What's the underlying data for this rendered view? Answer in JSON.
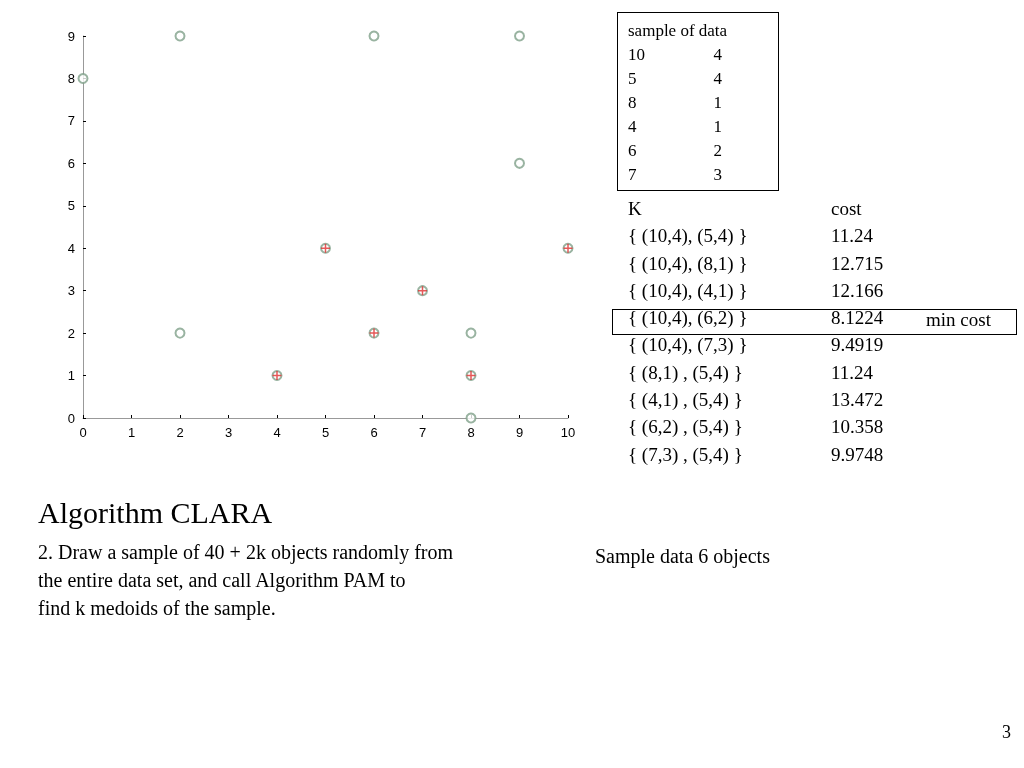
{
  "chart_data": {
    "type": "scatter",
    "title": "Algorithm CLARA",
    "subtitle": "2. Draw a sample of 40 + 2k objects randomly from\nthe entire data set, and call Algorithm PAM to\nfind k medoids of the sample.",
    "annotations": [
      "sample of data\n10\t4\n5\t4\n8\t1\n4\t1\n6\t2\n7\t3",
      "K\tcost\n{ (10,4), (5,4) }\t11.24\n{ (10,4), (8,1) }\t12.715\n{ (10,4), (4,1) }\t12.166\n{ (10,4), (6,2) }\t8.1224\n{ (10,4), (7,3) }\t9.4919\n{ (8,1) , (5,4) }\t11.24\n{ (4,1) , (5,4) }\t13.472\n{ (6,2) , (5,4) }\t10.358\n{ (7,3) , (5,4) }\t9.9748",
      "min cost",
      "Sample data 6 objects",
      "3"
    ],
    "series": [
      {
        "marker": "circle",
        "color": "#7fa08a",
        "x": [
          2,
          6,
          9,
          0,
          9,
          5,
          10,
          7,
          2,
          6,
          8,
          4,
          8,
          8
        ],
        "values": [
          9,
          9,
          9,
          8,
          6,
          4,
          4,
          3,
          2,
          2,
          2,
          1,
          1,
          0
        ]
      },
      {
        "marker": "cross",
        "color": "#e03030",
        "x": [
          5,
          10,
          7,
          6,
          4,
          8
        ],
        "values": [
          4,
          4,
          3,
          2,
          1,
          1
        ]
      }
    ],
    "xlim": [
      0,
      10
    ],
    "xticks": [
      0,
      1,
      2,
      3,
      4,
      5,
      6,
      7,
      8,
      9,
      10
    ],
    "ylim": [
      0,
      9
    ],
    "yticks": [
      0,
      1,
      2,
      3,
      4,
      5,
      6,
      7,
      8,
      9
    ],
    "grid": false
  }
}
